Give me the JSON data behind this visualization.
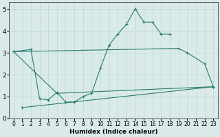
{
  "xlabel": "Humidex (Indice chaleur)",
  "xlim": [
    -0.5,
    23.5
  ],
  "ylim": [
    0,
    5.3
  ],
  "xticks": [
    0,
    1,
    2,
    3,
    4,
    5,
    6,
    7,
    8,
    9,
    10,
    11,
    12,
    13,
    14,
    15,
    16,
    17,
    18,
    19,
    20,
    21,
    22,
    23
  ],
  "yticks": [
    0,
    1,
    2,
    3,
    4,
    5
  ],
  "line_color": "#2a7a6a",
  "bg_color": "#daeaea",
  "grid_color": "#b8d8d8",
  "line1_x": [
    0,
    2,
    3,
    4,
    5,
    6,
    7,
    8,
    9,
    10,
    11,
    12,
    13,
    14,
    15,
    16,
    17,
    18
  ],
  "line1_y": [
    3.05,
    3.15,
    0.9,
    0.85,
    1.2,
    0.75,
    0.75,
    1.0,
    1.15,
    2.3,
    3.35,
    3.85,
    4.3,
    5.0,
    4.4,
    4.4,
    3.85,
    3.85
  ],
  "line2_x": [
    0,
    19,
    20,
    22,
    23
  ],
  "line2_y": [
    3.05,
    3.2,
    3.0,
    2.5,
    1.45
  ],
  "line3_x": [
    1,
    23
  ],
  "line3_y": [
    0.5,
    1.45
  ],
  "line4_x": [
    0,
    5,
    23
  ],
  "line4_y": [
    3.05,
    1.15,
    1.45
  ]
}
